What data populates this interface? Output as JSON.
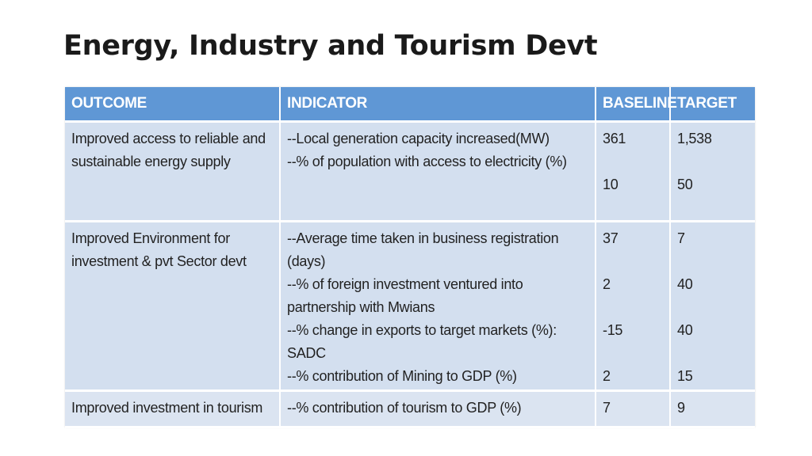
{
  "slide": {
    "title": "Energy, Industry and Tourism Devt"
  },
  "table": {
    "headers": {
      "outcome": "OUTCOME",
      "indicator": "INDICATOR",
      "baseline": "BASELINE",
      "target": "TARGET"
    },
    "rows": [
      {
        "outcome": [
          "Improved access to reliable and",
          "sustainable energy supply"
        ],
        "indicators": [
          "--Local generation capacity increased(MW)",
          "--% of population with access to electricity (%)"
        ],
        "baseline": [
          "361",
          "10"
        ],
        "target": [
          "1,538",
          "50"
        ]
      },
      {
        "outcome": [
          "Improved Environment for",
          "investment & pvt Sector devt"
        ],
        "indicators": [
          "--Average time taken in business registration",
          "(days)",
          "--% of foreign investment ventured into",
          "partnership with Mwians",
          "--% change in exports to target markets (%):",
          "SADC",
          "--% contribution of Mining to GDP (%)"
        ],
        "baseline": [
          "37",
          "2",
          "-15",
          "2"
        ],
        "target": [
          "7",
          "40",
          "40",
          "15"
        ]
      },
      {
        "outcome": [
          "Improved investment in tourism"
        ],
        "indicators": [
          "--% contribution of tourism to GDP (%)"
        ],
        "baseline": [
          "7"
        ],
        "target": [
          "9"
        ]
      }
    ]
  }
}
